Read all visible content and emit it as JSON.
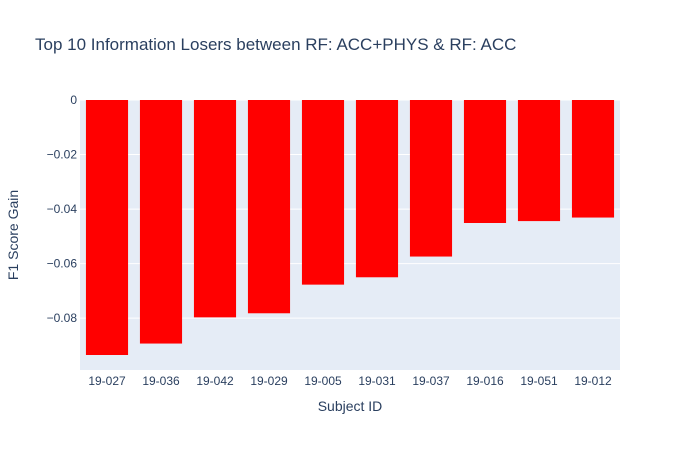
{
  "chart_data": {
    "type": "bar",
    "title": "Top 10 Information Losers between RF: ACC+PHYS & RF: ACC",
    "xlabel": "Subject ID",
    "ylabel": "F1 Score Gain",
    "categories": [
      "19-027",
      "19-036",
      "19-042",
      "19-029",
      "19-005",
      "19-031",
      "19-037",
      "19-016",
      "19-051",
      "19-012"
    ],
    "values": [
      -0.0935,
      -0.0893,
      -0.0797,
      -0.0782,
      -0.0677,
      -0.065,
      -0.0574,
      -0.0451,
      -0.0444,
      -0.0431
    ],
    "ylim": [
      -0.099,
      0
    ],
    "yticks": [
      0,
      -0.02,
      -0.04,
      -0.06,
      -0.08
    ],
    "ytick_labels": [
      "0",
      "−0.02",
      "−0.04",
      "−0.06",
      "−0.08"
    ],
    "bar_color": "#ff0000",
    "plot_background": "#e5ecf6",
    "grid": true,
    "legend": "none"
  }
}
